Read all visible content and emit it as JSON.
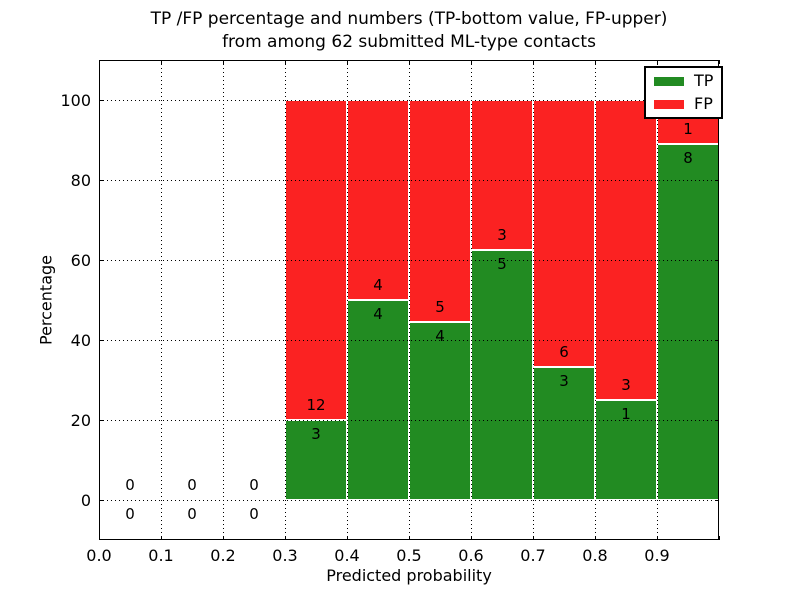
{
  "chart_data": {
    "type": "bar",
    "stacked": true,
    "title_line1": "TP /FP percentage and numbers (TP-bottom value, FP-upper)",
    "title_line2": "from among 62 submitted ML-type contacts",
    "xlabel": "Predicted probability",
    "ylabel": "Percentage",
    "bin_edges": [
      0.0,
      0.1,
      0.2,
      0.3,
      0.4,
      0.5,
      0.6,
      0.7,
      0.8,
      0.9,
      1.0
    ],
    "series": [
      {
        "name": "TP",
        "color": "#228b22",
        "values": [
          0,
          0,
          0,
          3,
          4,
          4,
          5,
          3,
          1,
          8
        ]
      },
      {
        "name": "FP",
        "color": "#fb2222",
        "values": [
          0,
          0,
          0,
          12,
          4,
          5,
          3,
          6,
          3,
          1
        ]
      }
    ],
    "tp_percent_per_bin": [
      null,
      null,
      null,
      20.0,
      50.0,
      44.4,
      62.5,
      33.3,
      25.0,
      88.9
    ],
    "total_contacts": 62,
    "xlim": [
      0.0,
      1.0
    ],
    "ylim": [
      -10,
      110
    ],
    "xtick_labels": [
      "0.0",
      "0.1",
      "0.2",
      "0.3",
      "0.4",
      "0.5",
      "0.6",
      "0.7",
      "0.8",
      "0.9"
    ],
    "ytick_values": [
      0,
      20,
      40,
      60,
      80,
      100
    ],
    "grid": "dotted, both axes, drawn above bars",
    "legend_position": "upper right"
  },
  "colors": {
    "tp": "#228b22",
    "fp": "#fb2222",
    "background": "#ffffff",
    "text": "#000000",
    "grid": "#000000"
  }
}
